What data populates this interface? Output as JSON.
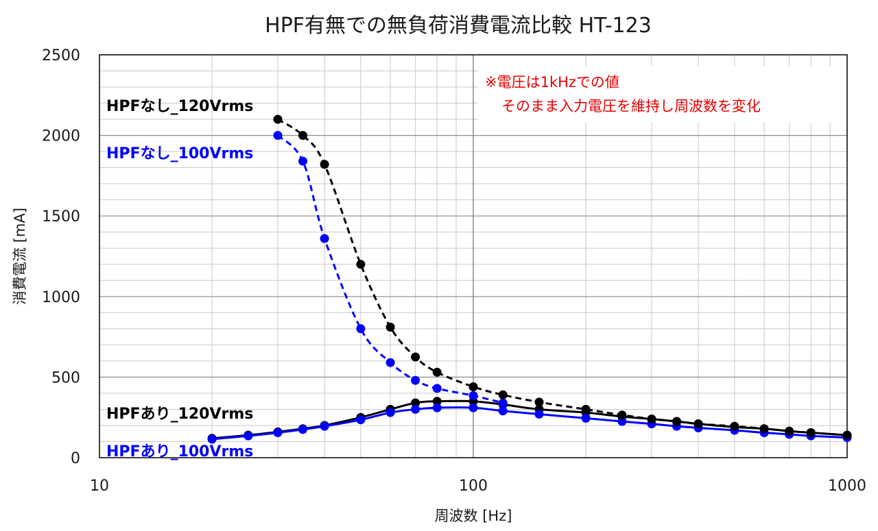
{
  "chart_data": {
    "type": "line",
    "title": "HPF有無での無負荷消費電流比較 HT-123",
    "xlabel": "周波数 [Hz]",
    "ylabel": "消費電流 [mA]",
    "xscale": "log",
    "xlim": [
      10,
      1000
    ],
    "ylim": [
      0,
      2500
    ],
    "xticks": [
      "10",
      "100",
      "1000"
    ],
    "yticks": [
      "0",
      "500",
      "1000",
      "1500",
      "2000",
      "2500"
    ],
    "grid": true,
    "annotation": {
      "line1": "※電圧は1kHzでの値",
      "line2": "そのまま入力電圧を維持し周波数を変化"
    },
    "series": [
      {
        "name": "HPFなし_120Vrms",
        "color": "#000000",
        "style": "dashed",
        "x": [
          30,
          35,
          40,
          50,
          60,
          70,
          80,
          100,
          120,
          150,
          200,
          250,
          300,
          350,
          400,
          500,
          600,
          700,
          800,
          1000
        ],
        "y": [
          2100,
          2000,
          1820,
          1200,
          810,
          625,
          530,
          440,
          390,
          345,
          300,
          265,
          240,
          225,
          210,
          195,
          180,
          165,
          155,
          140
        ]
      },
      {
        "name": "HPFなし_100Vrms",
        "color": "#0000ff",
        "style": "dashed",
        "x": [
          30,
          35,
          40,
          50,
          60,
          70,
          80,
          100,
          120
        ],
        "y": [
          2000,
          1840,
          1360,
          800,
          590,
          480,
          430,
          385,
          340
        ]
      },
      {
        "name": "HPFあり_120Vrms",
        "color": "#000000",
        "style": "solid",
        "x": [
          20,
          25,
          30,
          35,
          40,
          50,
          60,
          70,
          80,
          100,
          120,
          150,
          200,
          250,
          300,
          350,
          400,
          500,
          600,
          700,
          800,
          1000
        ],
        "y": [
          120,
          140,
          160,
          180,
          200,
          250,
          300,
          340,
          350,
          350,
          330,
          300,
          280,
          255,
          240,
          225,
          210,
          190,
          180,
          165,
          155,
          140
        ]
      },
      {
        "name": "HPFあり_100Vrms",
        "color": "#0000ff",
        "style": "solid",
        "x": [
          20,
          25,
          30,
          35,
          40,
          50,
          60,
          70,
          80,
          100,
          120,
          150,
          200,
          250,
          300,
          350,
          400,
          500,
          600,
          700,
          800,
          1000
        ],
        "y": [
          115,
          135,
          155,
          175,
          195,
          235,
          280,
          300,
          310,
          310,
          290,
          270,
          245,
          225,
          210,
          195,
          185,
          170,
          155,
          145,
          135,
          125
        ]
      }
    ]
  }
}
